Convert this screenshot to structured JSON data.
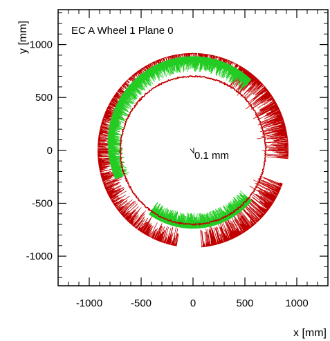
{
  "chart_data": {
    "type": "scatter",
    "title": "EC A Wheel 1 Plane 0",
    "xlabel": "x [mm]",
    "ylabel": "y [mm]",
    "xlim": [
      -1300,
      1300
    ],
    "ylim": [
      -1280,
      1330
    ],
    "xticks": [
      -1000,
      -500,
      0,
      500,
      1000
    ],
    "yticks": [
      -1000,
      -500,
      0,
      500,
      1000
    ],
    "xtick_labels": [
      "-1000",
      "-500",
      "0",
      "500",
      "1000"
    ],
    "ytick_labels": [
      "-1000",
      "-500",
      "0",
      "500",
      "1000"
    ],
    "annotation": {
      "text": "0.1 mm",
      "x": 0,
      "y": 0
    },
    "series": [
      {
        "shape": "ring",
        "color": "#c00000",
        "description": "outer radial spread with noise",
        "radius_min": 890,
        "radius_max": 920,
        "missing_arc_deg": [
          [
            -20,
            -5
          ],
          [
            260,
            275
          ]
        ]
      },
      {
        "shape": "ring",
        "color": "#c00000",
        "description": "inner ring",
        "radius": 700
      },
      {
        "shape": "ring",
        "color": "#22cc22",
        "description": "green inner layer",
        "radius_min": 720,
        "radius_max": 790
      }
    ]
  }
}
